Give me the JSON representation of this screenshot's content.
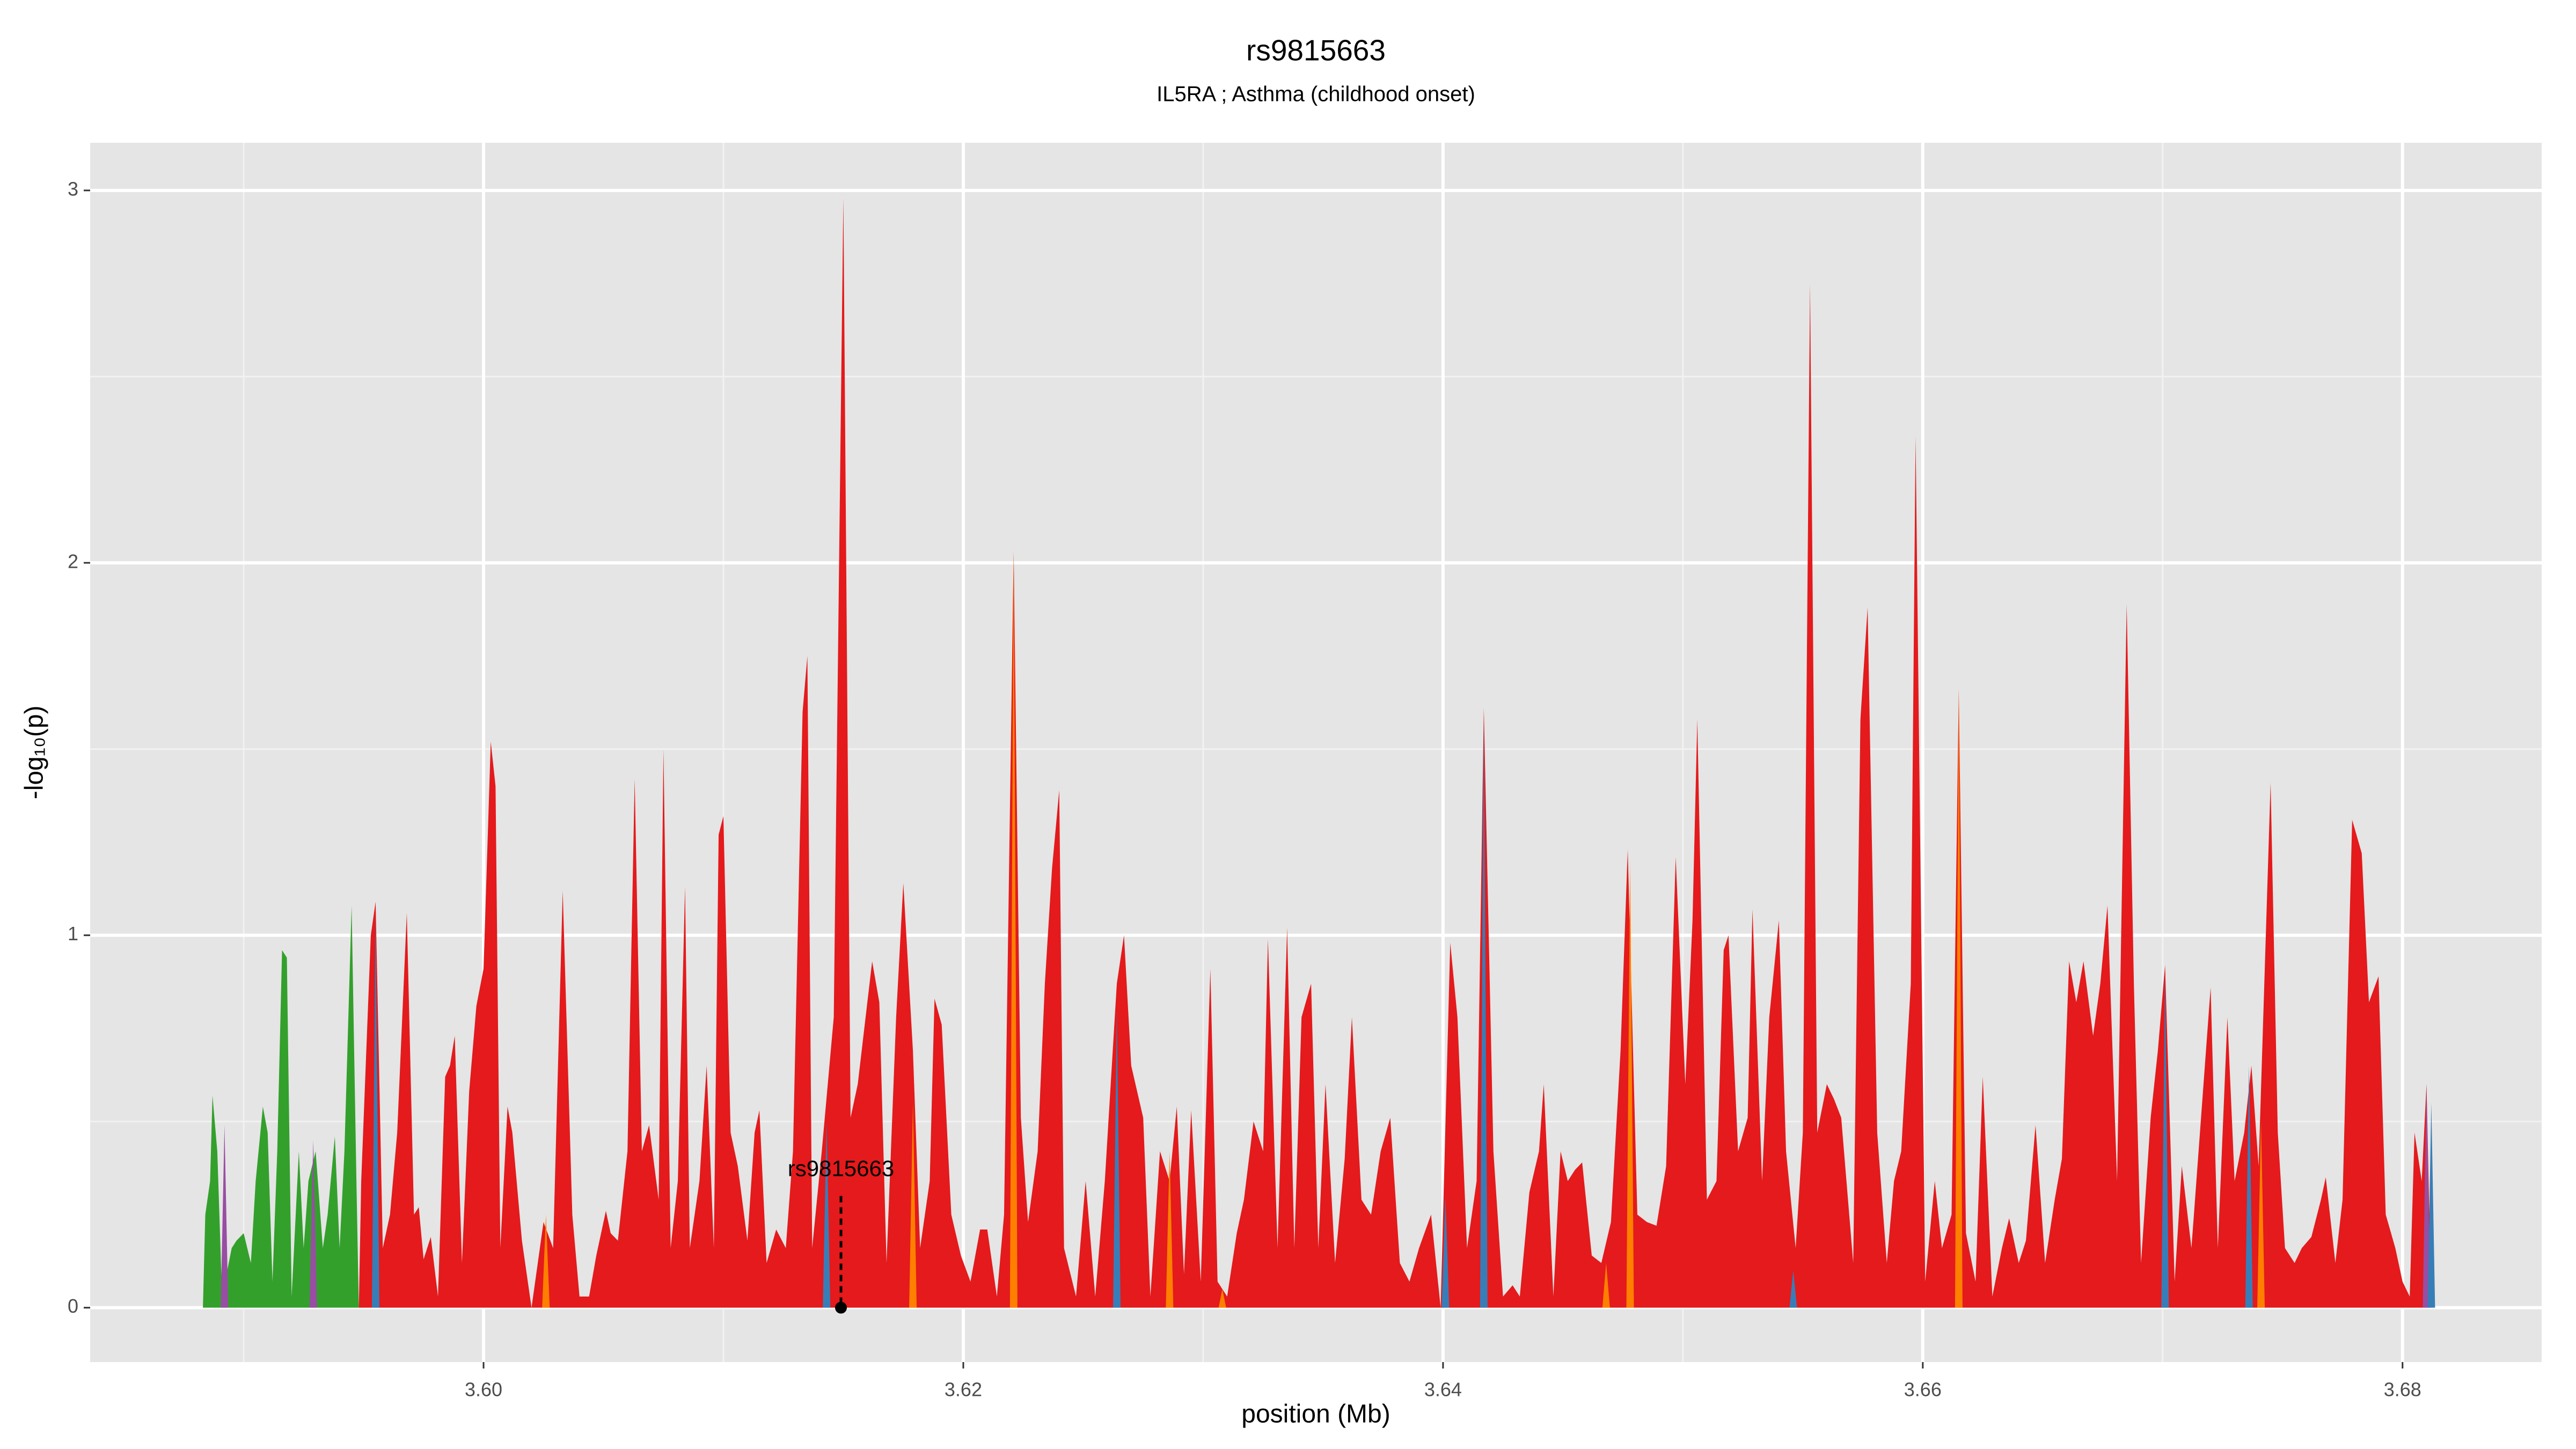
{
  "chart_data": {
    "type": "area",
    "title": "rs9815663",
    "subtitle": "IL5RA ; Asthma (childhood onset)",
    "xlabel": "position (Mb)",
    "ylabel": "-log₁₀(p)",
    "xlim": [
      3.5836,
      3.6858
    ],
    "ylim": [
      -0.146,
      3.128
    ],
    "xticks": [
      {
        "value": 3.6,
        "label": "3.60"
      },
      {
        "value": 3.62,
        "label": "3.62"
      },
      {
        "value": 3.64,
        "label": "3.64"
      },
      {
        "value": 3.66,
        "label": "3.66"
      },
      {
        "value": 3.68,
        "label": "3.68"
      }
    ],
    "yticks": [
      0,
      1,
      2,
      3
    ],
    "grid": true,
    "annotation": {
      "label": "rs9815663",
      "x": 3.6149,
      "y": 0.3
    },
    "series": [
      {
        "mark": "area",
        "color": "#33a02c",
        "x": [
          3.5883,
          3.5884,
          3.5886,
          3.5887,
          3.5889,
          3.5891,
          3.5895,
          3.5897,
          3.59,
          3.5903,
          3.5905,
          3.5908,
          3.591,
          3.5912,
          3.5914,
          3.5916,
          3.5918,
          3.592,
          3.5923,
          3.5925,
          3.5927,
          3.593,
          3.5933,
          3.5935,
          3.5938,
          3.594,
          3.5942,
          3.5945,
          3.5947,
          3.5948
        ],
        "values": [
          0,
          0.25,
          0.34,
          0.57,
          0.42,
          0.03,
          0.16,
          0.18,
          0.2,
          0.12,
          0.34,
          0.54,
          0.47,
          0.07,
          0.42,
          0.96,
          0.94,
          0.03,
          0.42,
          0.16,
          0.34,
          0.42,
          0.16,
          0.25,
          0.46,
          0.16,
          0.42,
          1.08,
          0.34,
          0
        ]
      },
      {
        "mark": "area",
        "color": "#e41a1c",
        "x": [
          3.5948,
          3.5949,
          3.5953,
          3.5955,
          3.5958,
          3.5961,
          3.5964,
          3.5968,
          3.5971,
          3.5973,
          3.5975,
          3.5978,
          3.5981,
          3.5984,
          3.5986,
          3.5988,
          3.5991,
          3.5994,
          3.5997,
          3.6,
          3.6003,
          3.6005,
          3.6007,
          3.601,
          3.6012,
          3.6016,
          3.602,
          3.6025,
          3.6029,
          3.6033,
          3.6037,
          3.604,
          3.6044,
          3.6047,
          3.6051,
          3.6053,
          3.6056,
          3.606,
          3.6063,
          3.6066,
          3.6069,
          3.6073,
          3.6075,
          3.6078,
          3.6081,
          3.6084,
          3.6086,
          3.609,
          3.6093,
          3.6096,
          3.6098,
          3.61,
          3.6103,
          3.6106,
          3.611,
          3.6113,
          3.6115,
          3.6118,
          3.6122,
          3.6126,
          3.6129,
          3.6133,
          3.6135,
          3.6137,
          3.6141,
          3.6146,
          3.615,
          3.6153,
          3.6156,
          3.6162,
          3.6165,
          3.6168,
          3.6172,
          3.6175,
          3.6179,
          3.6182,
          3.6186,
          3.6188,
          3.6191,
          3.6195,
          3.6199,
          3.6203,
          3.6207,
          3.621,
          3.6214,
          3.6217,
          3.6221,
          3.6224,
          3.6227,
          3.6231,
          3.6234,
          3.6237,
          3.624,
          3.6242,
          3.6247,
          3.6251,
          3.6255,
          3.6259,
          3.6264,
          3.6267,
          3.627,
          3.6275,
          3.6278,
          3.6282,
          3.6286,
          3.6289,
          3.6292,
          3.6295,
          3.6299,
          3.6303,
          3.6306,
          3.631,
          3.6314,
          3.6317,
          3.6321,
          3.6325,
          3.6327,
          3.6331,
          3.6335,
          3.6338,
          3.6341,
          3.6345,
          3.6348,
          3.6351,
          3.6355,
          3.6359,
          3.6362,
          3.6366,
          3.637,
          3.6374,
          3.6378,
          3.6382,
          3.6386,
          3.639,
          3.6395,
          3.6399,
          3.6403,
          3.6406,
          3.641,
          3.6414,
          3.6417,
          3.6421,
          3.6425,
          3.6429,
          3.6432,
          3.6436,
          3.644,
          3.6442,
          3.6446,
          3.6449,
          3.6452,
          3.6455,
          3.6458,
          3.6462,
          3.6466,
          3.647,
          3.6474,
          3.6477,
          3.6481,
          3.6485,
          3.6489,
          3.6493,
          3.6497,
          3.6501,
          3.6504,
          3.6506,
          3.651,
          3.6514,
          3.6517,
          3.6519,
          3.6523,
          3.6527,
          3.6529,
          3.6533,
          3.6536,
          3.654,
          3.6543,
          3.6547,
          3.655,
          3.6553,
          3.6556,
          3.656,
          3.6563,
          3.6566,
          3.6571,
          3.6574,
          3.6577,
          3.6581,
          3.6585,
          3.6588,
          3.6591,
          3.6595,
          3.6597,
          3.6601,
          3.6605,
          3.6608,
          3.6612,
          3.6615,
          3.6618,
          3.6622,
          3.6625,
          3.6629,
          3.6633,
          3.6636,
          3.664,
          3.6643,
          3.6647,
          3.6651,
          3.6655,
          3.6658,
          3.6661,
          3.6664,
          3.6667,
          3.6671,
          3.6674,
          3.6677,
          3.6681,
          3.6685,
          3.6688,
          3.6691,
          3.6695,
          3.6698,
          3.6701,
          3.6705,
          3.6708,
          3.6712,
          3.6716,
          3.672,
          3.6723,
          3.6727,
          3.673,
          3.6734,
          3.6737,
          3.674,
          3.6745,
          3.6748,
          3.6751,
          3.6755,
          3.6758,
          3.6762,
          3.6766,
          3.6768,
          3.6772,
          3.6775,
          3.6779,
          3.6783,
          3.6786,
          3.679,
          3.6793,
          3.6797,
          3.68,
          3.6803,
          3.6805,
          3.6808,
          3.681,
          3.6812
        ],
        "values": [
          0,
          0.34,
          1.0,
          1.09,
          0.16,
          0.25,
          0.47,
          1.06,
          0.25,
          0.27,
          0.13,
          0.19,
          0.03,
          0.62,
          0.65,
          0.73,
          0.12,
          0.58,
          0.81,
          0.91,
          1.52,
          1.4,
          0.16,
          0.54,
          0.47,
          0.18,
          0,
          0.23,
          0.16,
          1.12,
          0.25,
          0.03,
          0.03,
          0.14,
          0.26,
          0.2,
          0.18,
          0.42,
          1.42,
          0.42,
          0.49,
          0.29,
          1.5,
          0.16,
          0.34,
          1.13,
          0.16,
          0.34,
          0.65,
          0.16,
          1.27,
          1.32,
          0.47,
          0.38,
          0.18,
          0.47,
          0.53,
          0.12,
          0.21,
          0.16,
          0.42,
          1.6,
          1.75,
          0.16,
          0.42,
          0.78,
          2.98,
          0.51,
          0.6,
          0.93,
          0.82,
          0.12,
          0.78,
          1.14,
          0.69,
          0.16,
          0.34,
          0.83,
          0.76,
          0.25,
          0.14,
          0.07,
          0.21,
          0.21,
          0.03,
          0.25,
          2.03,
          0.51,
          0.23,
          0.42,
          0.87,
          1.18,
          1.39,
          0.16,
          0.03,
          0.34,
          0.03,
          0.34,
          0.87,
          1.0,
          0.65,
          0.51,
          0.03,
          0.42,
          0.34,
          0.54,
          0.09,
          0.53,
          0.07,
          0.91,
          0.07,
          0.03,
          0.2,
          0.29,
          0.5,
          0.42,
          0.99,
          0.16,
          1.02,
          0.16,
          0.78,
          0.87,
          0.16,
          0.6,
          0.12,
          0.4,
          0.78,
          0.29,
          0.25,
          0.42,
          0.51,
          0.12,
          0.07,
          0.16,
          0.25,
          0,
          0.98,
          0.78,
          0.16,
          0.34,
          1.61,
          0.42,
          0.03,
          0.06,
          0.03,
          0.31,
          0.42,
          0.6,
          0.03,
          0.42,
          0.34,
          0.37,
          0.39,
          0.14,
          0.12,
          0.23,
          0.69,
          1.23,
          0.25,
          0.23,
          0.22,
          0.38,
          1.21,
          0.6,
          1.04,
          1.58,
          0.29,
          0.34,
          0.96,
          1.0,
          0.42,
          0.51,
          1.07,
          0.34,
          0.78,
          1.04,
          0.42,
          0.16,
          0.47,
          2.75,
          0.47,
          0.6,
          0.56,
          0.51,
          0.12,
          1.58,
          1.88,
          0.47,
          0.12,
          0.34,
          0.42,
          0.87,
          2.34,
          0.07,
          0.34,
          0.16,
          0.25,
          1.66,
          0.2,
          0.07,
          0.62,
          0.03,
          0.16,
          0.24,
          0.12,
          0.18,
          0.49,
          0.12,
          0.29,
          0.4,
          0.93,
          0.82,
          0.93,
          0.73,
          0.87,
          1.08,
          0.34,
          1.89,
          0.87,
          0.12,
          0.51,
          0.69,
          0.92,
          0.07,
          0.38,
          0.16,
          0.51,
          0.86,
          0.16,
          0.78,
          0.34,
          0.47,
          0.65,
          0.38,
          1.41,
          0.47,
          0.16,
          0.12,
          0.16,
          0.19,
          0.29,
          0.35,
          0.12,
          0.29,
          1.31,
          1.22,
          0.82,
          0.89,
          0.25,
          0.16,
          0.07,
          0.03,
          0.47,
          0.34,
          0.6,
          0
        ]
      },
      {
        "mark": "spike",
        "color": "#984ea3",
        "x": [
          3.5892,
          3.5929,
          3.681
        ],
        "values": [
          0.49,
          0.45,
          0.6
        ]
      },
      {
        "mark": "spike",
        "color": "#377eb8",
        "x": [
          3.5955,
          3.6143,
          3.6264,
          3.6401,
          3.6417,
          3.6546,
          3.6701,
          3.6736,
          3.6812
        ],
        "values": [
          1.05,
          0.5,
          0.8,
          0.3,
          1.58,
          0.1,
          0.9,
          0.65,
          0.55
        ]
      },
      {
        "mark": "spike",
        "color": "#ff7f00",
        "x": [
          3.6026,
          3.6179,
          3.6221,
          3.6286,
          3.6308,
          3.6468,
          3.6478,
          3.6615,
          3.6741
        ],
        "values": [
          0.25,
          0.55,
          2.03,
          0.42,
          0.05,
          0.12,
          1.2,
          1.66,
          0.5
        ]
      }
    ]
  }
}
